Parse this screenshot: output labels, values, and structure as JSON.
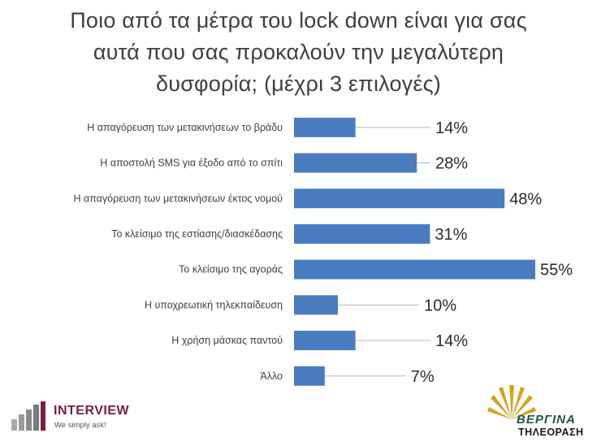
{
  "chart_data": {
    "type": "bar",
    "orientation": "horizontal",
    "title_lines": [
      "Ποιο από τα μέτρα του lock down είναι για σας",
      "αυτά που σας προκαλούν την μεγαλύτερη",
      "δυσφορία; (μέχρι 3 επιλογές)"
    ],
    "categories": [
      "Η απαγόρευση των μετακινήσεων το βράδυ",
      "Η αποστολή SMS για έξοδο από το σπίτι",
      "Η απαγόρευση των μετακινήσεων έκτος νομού",
      "Το κλείσιμο της εστίασης/διασκέδασης",
      "Το κλείσιμο της αγοράς",
      "Η υποχρεωτική τηλεκπαίδευση",
      "Η χρήση μάσκας παντού",
      "Άλλο"
    ],
    "values": [
      14,
      28,
      48,
      31,
      55,
      10,
      14,
      7
    ],
    "value_labels": [
      "14%",
      "28%",
      "48%",
      "31%",
      "55%",
      "10%",
      "14%",
      "7%"
    ],
    "xlim": [
      0,
      55
    ],
    "bar_color": "#4a7cc0",
    "grid": false,
    "legend": "none"
  },
  "logos": {
    "interview_name": "INTERVIEW",
    "interview_tagline": "We simply ask!",
    "vergina_name": "ΒΕΡΓΙΝΑ",
    "vergina_sub": "ΤΗΛΕΟΡΑΣΗ"
  }
}
